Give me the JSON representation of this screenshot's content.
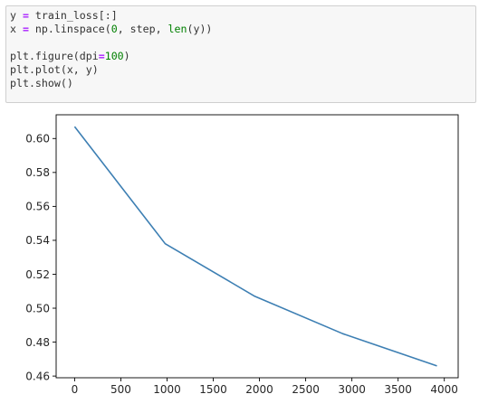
{
  "code_cell": {
    "lines": [
      {
        "parts": [
          {
            "text": "y ",
            "cls": ""
          },
          {
            "text": "=",
            "cls": "tok-op"
          },
          {
            "text": " train_loss[:]",
            "cls": ""
          }
        ]
      },
      {
        "parts": [
          {
            "text": "x ",
            "cls": ""
          },
          {
            "text": "=",
            "cls": "tok-op"
          },
          {
            "text": " np.linspace(",
            "cls": ""
          },
          {
            "text": "0",
            "cls": "tok-num"
          },
          {
            "text": ", step, ",
            "cls": ""
          },
          {
            "text": "len",
            "cls": "tok-builtin"
          },
          {
            "text": "(y))",
            "cls": ""
          }
        ]
      },
      {
        "blank": true
      },
      {
        "parts": [
          {
            "text": "plt.figure(dpi",
            "cls": ""
          },
          {
            "text": "=",
            "cls": "tok-op"
          },
          {
            "text": "100",
            "cls": "tok-num"
          },
          {
            "text": ")",
            "cls": ""
          }
        ]
      },
      {
        "parts": [
          {
            "text": "plt.plot(x, y)",
            "cls": ""
          }
        ]
      },
      {
        "parts": [
          {
            "text": "plt.show()",
            "cls": ""
          }
        ]
      }
    ]
  },
  "colors": {
    "line": "#3d7fb3",
    "axes": "#000000",
    "tick_text": "#262626"
  },
  "chart_data": {
    "type": "line",
    "title": "",
    "xlabel": "",
    "ylabel": "",
    "grid": false,
    "xlim": [
      -200,
      4150
    ],
    "ylim": [
      0.459,
      0.614
    ],
    "xticks": [
      0,
      500,
      1000,
      1500,
      2000,
      2500,
      3000,
      3500,
      4000
    ],
    "xtick_labels": [
      "0",
      "500",
      "1000",
      "1500",
      "2000",
      "2500",
      "3000",
      "3500",
      "4000"
    ],
    "yticks": [
      0.46,
      0.48,
      0.5,
      0.52,
      0.54,
      0.56,
      0.58,
      0.6
    ],
    "ytick_labels": [
      "0.46",
      "0.48",
      "0.50",
      "0.52",
      "0.54",
      "0.56",
      "0.58",
      "0.60"
    ],
    "series": [
      {
        "x": [
          0,
          980,
          1950,
          2900,
          3920
        ],
        "y": [
          0.607,
          0.538,
          0.507,
          0.485,
          0.466
        ]
      }
    ]
  }
}
